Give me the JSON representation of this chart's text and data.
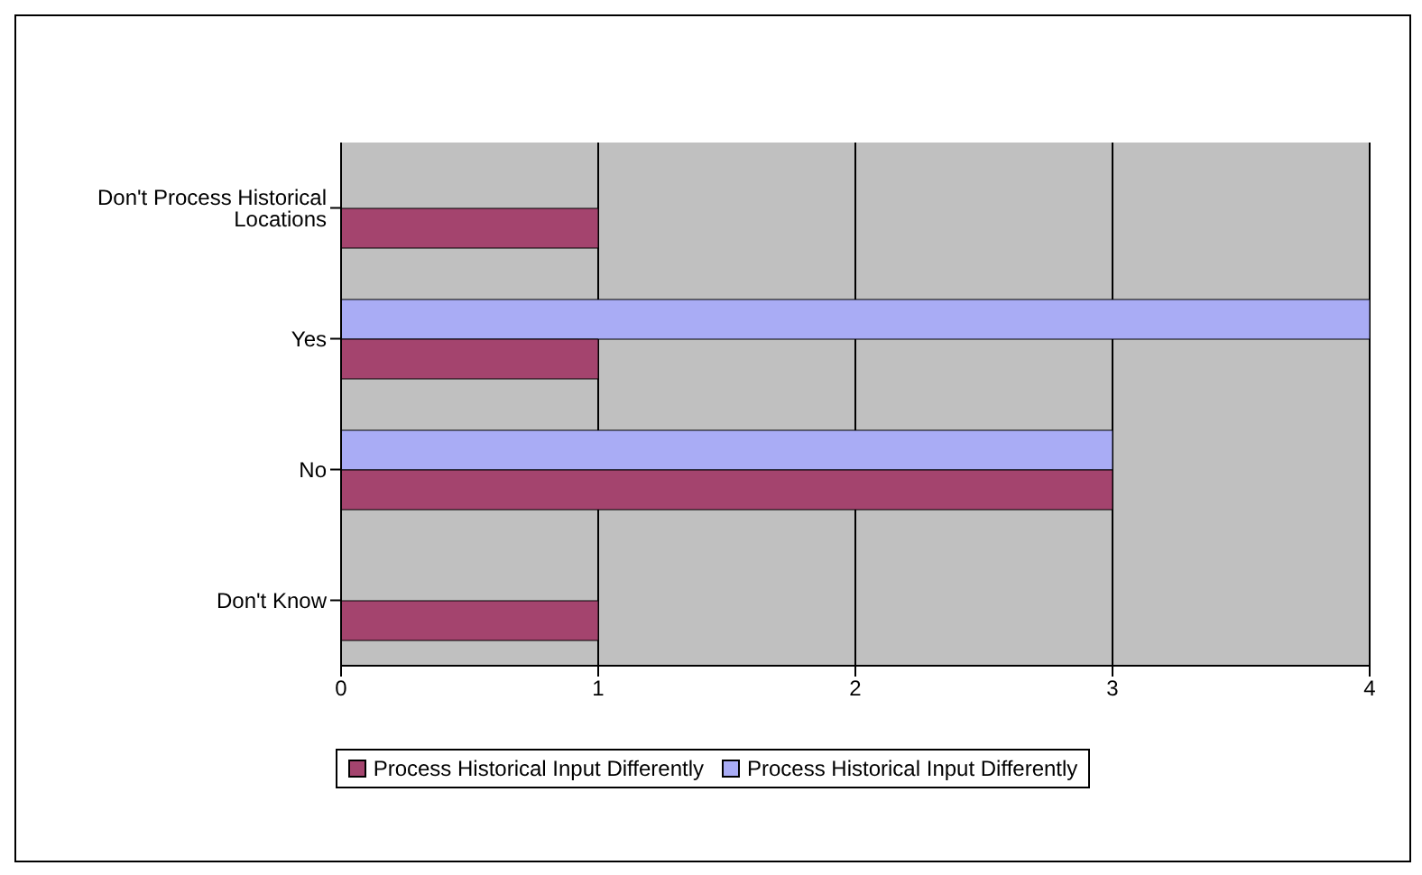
{
  "chart_data": {
    "type": "bar",
    "orientation": "horizontal",
    "categories": [
      "Don't Process Historical Locations",
      "Yes",
      "No",
      "Don't Know"
    ],
    "series": [
      {
        "name": "Process Historical Input Differently",
        "color": "#a4446e",
        "values": [
          1,
          1,
          3,
          1
        ]
      },
      {
        "name": "Process Historical Input Differently",
        "color": "#a9acf5",
        "values": [
          null,
          4,
          3,
          null
        ]
      }
    ],
    "xlim": [
      0,
      4
    ],
    "xticks": [
      0,
      1,
      2,
      3,
      4
    ],
    "grid": "x",
    "legend": "bottom"
  }
}
